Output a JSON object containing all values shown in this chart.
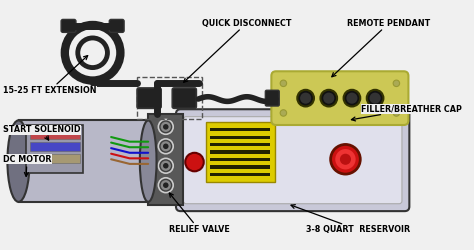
{
  "background_color": "#f0f0f0",
  "colors": {
    "motor_body": "#b8b8c8",
    "motor_dark": "#888898",
    "motor_endcap": "#707080",
    "reservoir_body": "#c8c8d8",
    "reservoir_highlight": "#e0e0ec",
    "pendant_body": "#ccc855",
    "pendant_border": "#aaaa33",
    "valve_block": "#585858",
    "connector_dark": "#222222",
    "cable_color": "#222222",
    "border_color": "#333333",
    "red_part": "#cc1111",
    "yellow_sticker": "#ddcc00",
    "wire_green": "#119911",
    "wire_blue": "#1111cc",
    "wire_red": "#cc1111",
    "wire_brown": "#996633",
    "solenoid_color": "#9999aa",
    "bg_white": "#f8f8f8"
  },
  "labels": {
    "extension": "15-25 FT EXTENSION",
    "quick_disconnect": "QUICK DISCONNECT",
    "remote_pendant": "REMOTE PENDANT",
    "start_solenoid": "START SOLENOID",
    "dc_motor": "DC MOTOR",
    "relief_valve": "RELIEF VALVE",
    "filler_cap": "FILLER/BREATHER CAP",
    "reservoir": "3-8 QUART  RESERVOIR"
  },
  "figsize": [
    4.74,
    2.5
  ],
  "dpi": 100
}
